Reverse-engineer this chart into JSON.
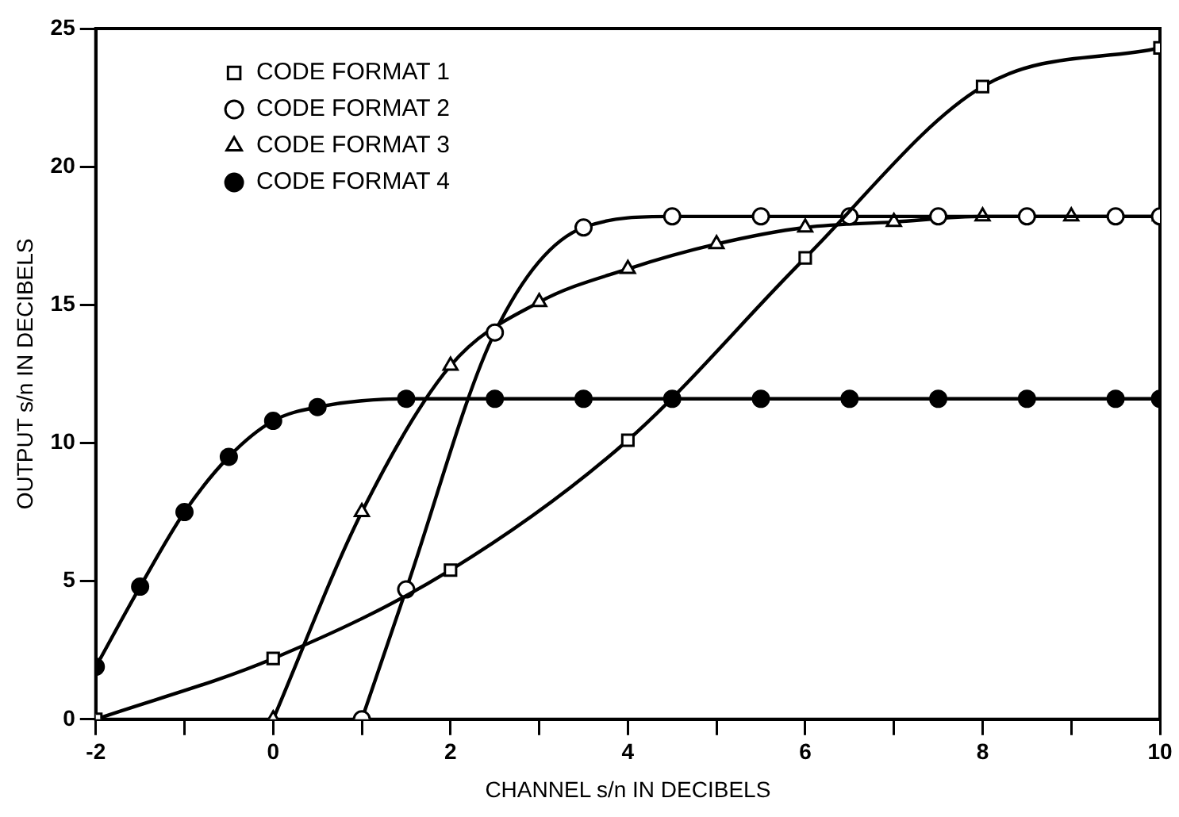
{
  "chart_data": {
    "type": "line",
    "xlabel": "CHANNEL s/n IN DECIBELS",
    "ylabel": "OUTPUT s/n IN DECIBELS",
    "xlim": [
      -2,
      10
    ],
    "xticks": [
      -2,
      {
        "value": -1,
        "label": null
      },
      0,
      {
        "value": 1,
        "label": null
      },
      2,
      {
        "value": 3,
        "label": null
      },
      4,
      {
        "value": 5,
        "label": null
      },
      6,
      {
        "value": 7,
        "label": null
      },
      8,
      {
        "value": 9,
        "label": null
      },
      10
    ],
    "ylim": [
      0,
      25
    ],
    "yticks": [
      0,
      5,
      10,
      15,
      20,
      25
    ],
    "grid": false,
    "legend": "top left",
    "line_style": "solid",
    "series": [
      {
        "name": "CODE FORMAT 1",
        "color": "#000000",
        "marker": "square",
        "x": [
          -2,
          0,
          2,
          4,
          6,
          8,
          10
        ],
        "values": [
          0,
          2.2,
          5.4,
          10.1,
          16.7,
          22.9,
          24.3
        ]
      },
      {
        "name": "CODE FORMAT 2",
        "color": "#000000",
        "marker": "circle",
        "x": [
          1,
          1.5,
          2.5,
          3.5,
          4.5,
          5.5,
          6.5,
          7.5,
          8.5,
          9.5,
          10
        ],
        "values": [
          0,
          4.7,
          14,
          17.8,
          18.2,
          18.2,
          18.2,
          18.2,
          18.2,
          18.2,
          18.2
        ]
      },
      {
        "name": "CODE FORMAT 3",
        "color": "#000000",
        "marker": "triangle",
        "x": [
          0,
          1,
          2,
          3,
          4,
          5,
          6,
          7,
          8,
          9,
          10
        ],
        "values": [
          0,
          7.5,
          12.8,
          15.1,
          16.3,
          17.2,
          17.8,
          18.0,
          18.2,
          18.2,
          18.2
        ]
      },
      {
        "name": "CODE FORMAT 4",
        "color": "#000000",
        "marker": "circle",
        "x": [
          -2,
          -1.5,
          -1,
          -0.5,
          0,
          0.5,
          1.5,
          2.5,
          3.5,
          4.5,
          5.5,
          6.5,
          7.5,
          8.5,
          9.5,
          10
        ],
        "values": [
          1.9,
          4.8,
          7.5,
          9.5,
          10.8,
          11.3,
          11.6,
          11.6,
          11.6,
          11.6,
          11.6,
          11.6,
          11.6,
          11.6,
          11.6,
          11.6
        ]
      }
    ]
  }
}
